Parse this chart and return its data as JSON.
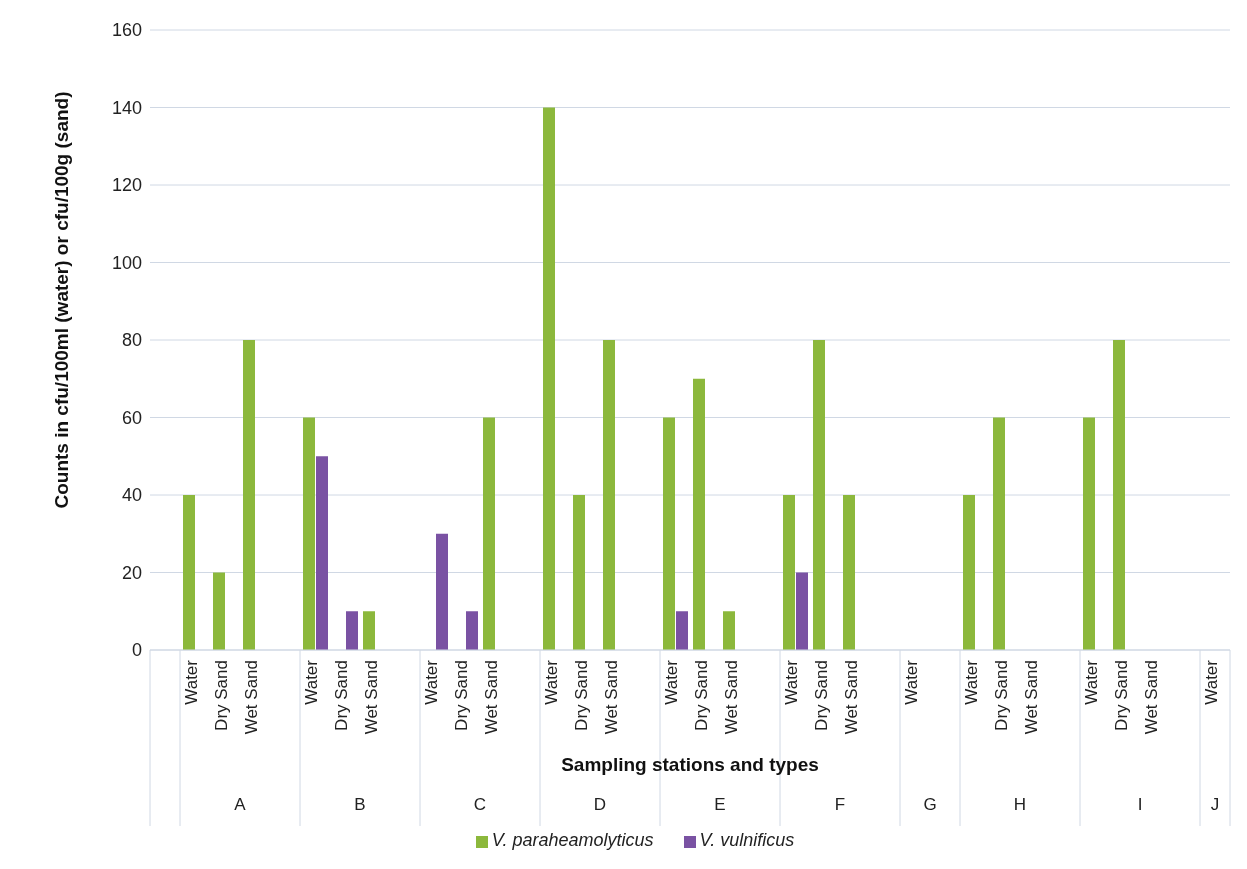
{
  "chart_data": {
    "type": "bar",
    "xlabel": "Sampling stations and types",
    "ylabel": "Counts in cfu/100ml (water) or cfu/100g (sand)",
    "categories": [
      null,
      "Water",
      "Dry Sand",
      "Wet Sand",
      null,
      "Water",
      "Dry Sand",
      "Wet Sand",
      null,
      "Water",
      "Dry Sand",
      "Wet Sand",
      null,
      "Water",
      "Dry Sand",
      "Wet Sand",
      null,
      "Water",
      "Dry Sand",
      "Wet Sand",
      null,
      "Water",
      "Dry Sand",
      "Wet Sand",
      null,
      "Water",
      null,
      "Water",
      "Dry Sand",
      "Wet Sand",
      null,
      "Water",
      "Dry Sand",
      "Wet Sand",
      null,
      "Water"
    ],
    "annotations": [
      "A",
      "B",
      "C",
      "D",
      "E",
      "F",
      "G",
      "H",
      "I",
      "J"
    ],
    "series": [
      {
        "name": "V. paraheamolyticus",
        "color": "#8cb83c",
        "values": [
          null,
          40,
          20,
          80,
          null,
          60,
          null,
          10,
          null,
          null,
          null,
          60,
          null,
          140,
          40,
          80,
          null,
          60,
          70,
          10,
          null,
          40,
          80,
          40,
          null,
          null,
          null,
          40,
          60,
          null,
          null,
          60,
          80,
          null,
          null,
          null
        ]
      },
      {
        "name": "V. vulnificus",
        "color": "#7a52a3",
        "values": [
          null,
          null,
          null,
          null,
          null,
          50,
          10,
          null,
          null,
          30,
          10,
          null,
          null,
          null,
          null,
          null,
          null,
          10,
          null,
          null,
          null,
          20,
          null,
          null,
          null,
          null,
          null,
          null,
          null,
          null,
          null,
          null,
          null,
          null,
          null,
          null
        ]
      }
    ],
    "ylim": [
      0,
      160
    ],
    "yticks": [
      0,
      20,
      40,
      60,
      80,
      100,
      120,
      140,
      160
    ],
    "grid": "y",
    "legend": "bottom"
  }
}
